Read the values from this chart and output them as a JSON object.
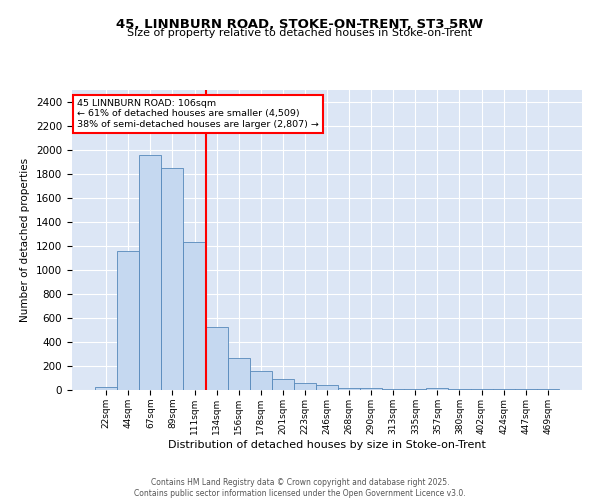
{
  "title": "45, LINNBURN ROAD, STOKE-ON-TRENT, ST3 5RW",
  "subtitle": "Size of property relative to detached houses in Stoke-on-Trent",
  "xlabel": "Distribution of detached houses by size in Stoke-on-Trent",
  "ylabel": "Number of detached properties",
  "bin_labels": [
    "22sqm",
    "44sqm",
    "67sqm",
    "89sqm",
    "111sqm",
    "134sqm",
    "156sqm",
    "178sqm",
    "201sqm",
    "223sqm",
    "246sqm",
    "268sqm",
    "290sqm",
    "313sqm",
    "335sqm",
    "357sqm",
    "380sqm",
    "402sqm",
    "424sqm",
    "447sqm",
    "469sqm"
  ],
  "bar_heights": [
    25,
    1160,
    1960,
    1850,
    1230,
    525,
    270,
    155,
    90,
    55,
    45,
    20,
    15,
    10,
    5,
    20,
    5,
    5,
    5,
    5,
    5
  ],
  "bar_color": "#c5d8f0",
  "bar_edge_color": "#5588bb",
  "vline_x_index": 4,
  "vline_color": "red",
  "annotation_text": "45 LINNBURN ROAD: 106sqm\n← 61% of detached houses are smaller (4,509)\n38% of semi-detached houses are larger (2,807) →",
  "annotation_box_color": "white",
  "annotation_box_edge": "red",
  "ylim": [
    0,
    2500
  ],
  "yticks": [
    0,
    200,
    400,
    600,
    800,
    1000,
    1200,
    1400,
    1600,
    1800,
    2000,
    2200,
    2400
  ],
  "background_color": "#dce6f5",
  "grid_color": "white",
  "footer_line1": "Contains HM Land Registry data © Crown copyright and database right 2025.",
  "footer_line2": "Contains public sector information licensed under the Open Government Licence v3.0."
}
